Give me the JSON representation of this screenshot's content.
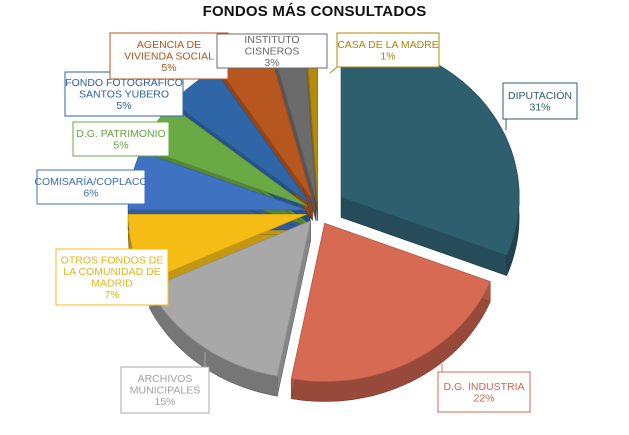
{
  "chart_data": {
    "type": "pie",
    "title": "FONDOS MÁS CONSULTADOS",
    "slices": [
      {
        "label": "DIPUTACIÓN",
        "value": 31,
        "value_label": "31%",
        "color": "#2e5f6e"
      },
      {
        "label": "D.G. INDUSTRIA",
        "value": 22,
        "value_label": "22%",
        "color": "#d76a52"
      },
      {
        "label": "ARCHIVOS MUNICIPALES",
        "value": 15,
        "value_label": "15%",
        "color": "#a8a8a8"
      },
      {
        "label": "OTROS FONDOS DE LA COMUNIDAD DE MADRID",
        "value": 7,
        "value_label": "7%",
        "color": "#f5bd16"
      },
      {
        "label": "COMISARÍA/COPLACO",
        "value": 6,
        "value_label": "6%",
        "color": "#3f72c0"
      },
      {
        "label": "D.G. PATRIMONIO",
        "value": 5,
        "value_label": "5%",
        "color": "#6aaa44"
      },
      {
        "label": "FONDO FOTOGRÁFICO SANTOS YUBERO",
        "value": 5,
        "value_label": "5%",
        "color": "#2f66a8"
      },
      {
        "label": "AGENCIA DE VIVIENDA SOCIAL",
        "value": 5,
        "value_label": "5%",
        "color": "#b8561f"
      },
      {
        "label": "INSTITUTO CISNEROS",
        "value": 3,
        "value_label": "3%",
        "color": "#6b6b6b"
      },
      {
        "label": "CASA DE LA MADRE",
        "value": 1,
        "value_label": "1%",
        "color": "#b38a0c"
      }
    ]
  }
}
